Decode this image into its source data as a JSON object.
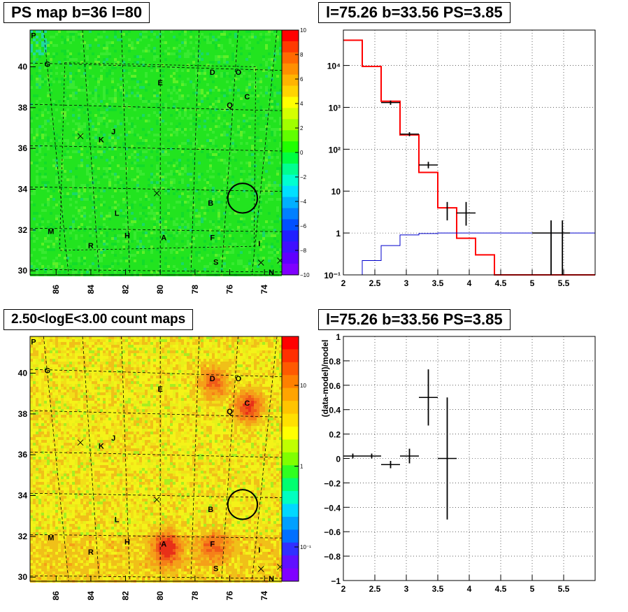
{
  "titles": {
    "tl": "PS map b=36 l=80",
    "tr": "l=75.26 b=33.56 PS=3.85",
    "bl": "2.50<logE<3.00 count maps",
    "br": "l=75.26 b=33.56 PS=3.85"
  },
  "colors": {
    "red": "#ff0000",
    "black": "#000000",
    "blue": "#0000cc",
    "map_top_bg": "#22e41f",
    "map_bot_bg": "#f2ef10"
  },
  "chart_data": [
    {
      "type": "heatmap",
      "title": "PS map b=36 l=80",
      "xlabel": "",
      "ylabel": "",
      "xlim": [
        87.5,
        73
      ],
      "ylim": [
        29.8,
        41.8
      ],
      "x_ticks": [
        "86",
        "84",
        "82",
        "80",
        "78",
        "76",
        "74"
      ],
      "y_ticks": [
        "30",
        "32",
        "34",
        "36",
        "38",
        "40"
      ],
      "colorbar": {
        "range": [
          -10,
          10
        ],
        "ticks": [
          "10",
          "8",
          "6",
          "4",
          "2",
          "0",
          "−2",
          "−4",
          "−6",
          "−8",
          "−10"
        ]
      },
      "source_labels": [
        {
          "t": "P",
          "l": 87.3,
          "b": 41.4
        },
        {
          "t": "G",
          "l": 86.5,
          "b": 40.0
        },
        {
          "t": "D",
          "l": 77.0,
          "b": 39.6
        },
        {
          "t": "O",
          "l": 75.5,
          "b": 39.6
        },
        {
          "t": "E",
          "l": 80.0,
          "b": 39.1
        },
        {
          "t": "C",
          "l": 75.0,
          "b": 38.4
        },
        {
          "t": "Q",
          "l": 76.0,
          "b": 38.0
        },
        {
          "t": "J",
          "l": 82.7,
          "b": 36.7
        },
        {
          "t": "K",
          "l": 83.4,
          "b": 36.3
        },
        {
          "t": "L",
          "l": 82.5,
          "b": 32.7
        },
        {
          "t": "B",
          "l": 77.1,
          "b": 33.2
        },
        {
          "t": "M",
          "l": 86.3,
          "b": 31.8
        },
        {
          "t": "H",
          "l": 81.9,
          "b": 31.6
        },
        {
          "t": "A",
          "l": 79.8,
          "b": 31.5
        },
        {
          "t": "F",
          "l": 77.0,
          "b": 31.5
        },
        {
          "t": "R",
          "l": 84.0,
          "b": 31.1
        },
        {
          "t": "I",
          "l": 74.3,
          "b": 31.2
        },
        {
          "t": "S",
          "l": 76.8,
          "b": 30.3
        },
        {
          "t": "N",
          "l": 73.6,
          "b": 29.8
        }
      ],
      "markers_x": [
        {
          "l": 84.6,
          "b": 36.6
        },
        {
          "l": 80.2,
          "b": 33.8
        },
        {
          "l": 74.2,
          "b": 30.4
        },
        {
          "l": 73.1,
          "b": 30.5
        }
      ],
      "circle": {
        "l": 75.26,
        "b": 33.56,
        "r": 0.55
      }
    },
    {
      "type": "line",
      "title": "l=75.26 b=33.56 PS=3.85",
      "xlabel": "",
      "ylabel": "",
      "xlim": [
        2,
        6
      ],
      "ylim": [
        0.1,
        70000
      ],
      "yscale": "log",
      "x_ticks": [
        "2",
        "2.5",
        "3",
        "3.5",
        "4",
        "4.5",
        "5",
        "5.5"
      ],
      "y_ticks": [
        "10⁻¹",
        "1",
        "10",
        "10²",
        "10³",
        "10⁴"
      ],
      "series": [
        {
          "style": "step",
          "color": "red",
          "edges": [
            2.0,
            2.3,
            2.6,
            2.9,
            3.2,
            3.5,
            3.8,
            4.1,
            4.4,
            6.0
          ],
          "values": [
            40000,
            9500,
            1400,
            220,
            28,
            4,
            0.75,
            0.3,
            0.1
          ]
        },
        {
          "style": "step",
          "color": "blue",
          "edges": [
            2.0,
            2.3,
            2.6,
            2.9,
            3.2,
            3.5,
            3.8,
            4.1,
            4.4,
            6.0
          ],
          "values": [
            0.1,
            0.22,
            0.5,
            0.9,
            0.97,
            1.0,
            1.0,
            1.0,
            1.0
          ]
        },
        {
          "style": "errorbar",
          "color": "black",
          "points": [
            {
              "x": 2.75,
              "y": 1300,
              "xerr": 0.15,
              "ylo": 1150,
              "yhi": 1450
            },
            {
              "x": 3.05,
              "y": 230,
              "xerr": 0.15,
              "ylo": 205,
              "yhi": 255
            },
            {
              "x": 3.35,
              "y": 42,
              "xerr": 0.15,
              "ylo": 35,
              "yhi": 50
            },
            {
              "x": 3.65,
              "y": 3.2,
              "xerr": 0.0,
              "ylo": 2.0,
              "yhi": 5.5
            },
            {
              "x": 3.95,
              "y": 3.0,
              "xerr": 0.15,
              "ylo": 1.5,
              "yhi": 5.5
            },
            {
              "x": 5.3,
              "y": 1.0,
              "xerr": 0.3,
              "ylo": 0.1,
              "yhi": 2.0
            }
          ]
        }
      ]
    },
    {
      "type": "heatmap",
      "title": "2.50<logE<3.00 count maps",
      "xlabel": "",
      "ylabel": "",
      "xlim": [
        87.5,
        73
      ],
      "ylim": [
        29.8,
        41.8
      ],
      "x_ticks": [
        "86",
        "84",
        "82",
        "80",
        "78",
        "76",
        "74"
      ],
      "y_ticks": [
        "30",
        "32",
        "34",
        "36",
        "38",
        "40"
      ],
      "colorbar": {
        "scale": "log",
        "ticks": [
          "10",
          "1",
          "10⁻¹"
        ]
      },
      "hotspots": [
        {
          "l": 79.7,
          "b": 31.5,
          "s": 1.0
        },
        {
          "l": 75.0,
          "b": 38.4,
          "s": 0.9
        },
        {
          "l": 77.0,
          "b": 39.6,
          "s": 0.7
        },
        {
          "l": 77.0,
          "b": 31.6,
          "s": 0.6
        }
      ]
    },
    {
      "type": "scatter",
      "title": "l=75.26 b=33.56 PS=3.85",
      "xlabel": "",
      "ylabel": "(data-model)/model",
      "xlim": [
        2,
        6
      ],
      "ylim": [
        -1,
        1
      ],
      "x_ticks": [
        "2",
        "2.5",
        "3",
        "3.5",
        "4",
        "4.5",
        "5",
        "5.5"
      ],
      "y_ticks": [
        "1",
        "0.8",
        "0.6",
        "0.4",
        "0.2",
        "0",
        "−0.2",
        "−0.4",
        "−0.6",
        "−0.8",
        "−1"
      ],
      "points": [
        {
          "x": 2.15,
          "y": 0.02,
          "xerr": 0.15,
          "ylo": 0.0,
          "yhi": 0.04
        },
        {
          "x": 2.45,
          "y": 0.02,
          "xerr": 0.15,
          "ylo": 0.0,
          "yhi": 0.04
        },
        {
          "x": 2.75,
          "y": -0.05,
          "xerr": 0.15,
          "ylo": -0.08,
          "yhi": -0.02
        },
        {
          "x": 3.05,
          "y": 0.02,
          "xerr": 0.15,
          "ylo": -0.04,
          "yhi": 0.08
        },
        {
          "x": 3.35,
          "y": 0.5,
          "xerr": 0.15,
          "ylo": 0.27,
          "yhi": 0.73
        },
        {
          "x": 3.65,
          "y": 0.0,
          "xerr": 0.15,
          "ylo": -0.5,
          "yhi": 0.5
        }
      ]
    }
  ]
}
